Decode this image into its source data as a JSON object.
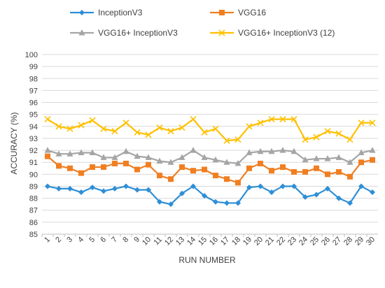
{
  "chart_data": {
    "type": "line",
    "title": "",
    "xlabel": "RUN NUMBER",
    "ylabel": "ACCURACY (%)",
    "ylim": [
      85,
      100
    ],
    "y_ticks": [
      85,
      86,
      87,
      88,
      89,
      90,
      91,
      92,
      93,
      94,
      95,
      96,
      97,
      98,
      99,
      100
    ],
    "grid": true,
    "legend_position": "top",
    "x": [
      1,
      2,
      3,
      4,
      5,
      6,
      7,
      8,
      9,
      10,
      11,
      12,
      13,
      14,
      15,
      16,
      17,
      18,
      19,
      20,
      21,
      22,
      23,
      24,
      25,
      26,
      27,
      28,
      29,
      30
    ],
    "series": [
      {
        "name": "InceptionV3",
        "color": "#2e8fd6",
        "marker": "diamond",
        "values": [
          89.0,
          88.8,
          88.8,
          88.5,
          88.9,
          88.6,
          88.8,
          89.0,
          88.7,
          88.7,
          87.7,
          87.5,
          88.4,
          89.0,
          88.2,
          87.7,
          87.6,
          87.6,
          88.9,
          89.0,
          88.5,
          89.0,
          89.0,
          88.1,
          88.3,
          88.8,
          88.0,
          87.6,
          89.0,
          88.5
        ]
      },
      {
        "name": "VGG16",
        "color": "#f07f22",
        "marker": "square",
        "values": [
          91.5,
          90.7,
          90.5,
          90.1,
          90.6,
          90.6,
          90.9,
          90.9,
          90.4,
          90.8,
          89.9,
          89.6,
          90.6,
          90.3,
          90.4,
          89.9,
          89.6,
          89.3,
          90.5,
          90.9,
          90.3,
          90.6,
          90.2,
          90.2,
          90.5,
          90.0,
          90.2,
          89.8,
          91.0,
          91.2
        ]
      },
      {
        "name": "VGG16+ InceptionV3",
        "color": "#a5a5a5",
        "marker": "triangle",
        "values": [
          92.0,
          91.7,
          91.7,
          91.8,
          91.8,
          91.4,
          91.4,
          91.9,
          91.5,
          91.4,
          91.1,
          91.0,
          91.4,
          92.0,
          91.4,
          91.2,
          91.0,
          90.9,
          91.8,
          91.9,
          91.9,
          92.0,
          91.9,
          91.2,
          91.3,
          91.3,
          91.4,
          91.0,
          91.8,
          92.0
        ]
      },
      {
        "name": "VGG16+ InceptionV3 (12)",
        "color": "#ffc000",
        "marker": "x",
        "values": [
          94.6,
          94.0,
          93.8,
          94.1,
          94.5,
          93.8,
          93.6,
          94.3,
          93.5,
          93.3,
          93.9,
          93.6,
          93.9,
          94.6,
          93.5,
          93.8,
          92.8,
          92.9,
          94.0,
          94.3,
          94.6,
          94.6,
          94.6,
          92.9,
          93.1,
          93.6,
          93.4,
          92.9,
          94.3,
          94.3
        ]
      }
    ]
  }
}
